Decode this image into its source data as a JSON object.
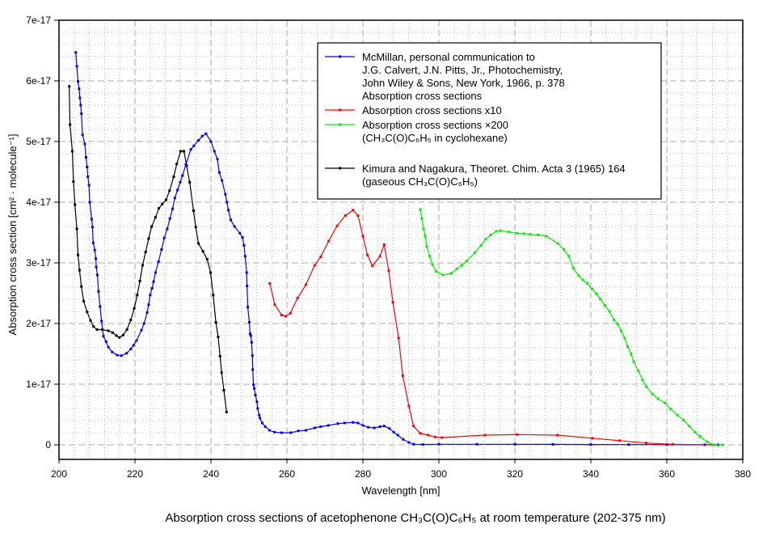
{
  "chart_data": {
    "type": "line",
    "title": "Absorption cross sections of acetophenone CH₃C(O)C₆H₅ at room temperature (202-375 nm)",
    "xlabel": "Wavelength [nm]",
    "ylabel": "Absorption cross section [cm² · molecule⁻¹]",
    "xlim": [
      200,
      380
    ],
    "ylim": [
      0,
      7e-17
    ],
    "x_ticks": [
      "200",
      "220",
      "240",
      "260",
      "280",
      "300",
      "320",
      "340",
      "360",
      "380"
    ],
    "y_ticks": [
      "0",
      "1e-17",
      "2e-17",
      "3e-17",
      "4e-17",
      "5e-17",
      "6e-17",
      "7e-17"
    ],
    "grid": true,
    "legend_position": "top-right",
    "legend": [
      {
        "series": 0,
        "lines": [
          "McMillan, personal communication to",
          "J.G. Calvert, J.N. Pitts, Jr., Photochemistry,",
          "John Wiley & Sons, New York, 1966, p. 378",
          "Absorption cross sections"
        ]
      },
      {
        "series": 1,
        "lines": [
          "Absorption cross sections x10"
        ]
      },
      {
        "series": 2,
        "lines": [
          "Absorption cross sections ×200",
          "(CH₃C(O)C₆H₅ in cyclohexane)"
        ]
      },
      {
        "series": 3,
        "lines": [
          "Kimura and Nagakura, Theoret. Chim. Acta 3 (1965) 164",
          "(gaseous CH₃C(O)C₆H₅)"
        ]
      }
    ],
    "series": [
      {
        "color": "#0000ff",
        "x": [
          204.4,
          204.7,
          205.0,
          205.3,
          205.5,
          205.7,
          205.9,
          206.2,
          206.8,
          207.1,
          207.4,
          207.6,
          207.9,
          208.1,
          208.6,
          208.8,
          209.0,
          209.4,
          209.7,
          209.8,
          210.1,
          210.4,
          210.8,
          211.2,
          211.7,
          212.4,
          213.0,
          214.0,
          215.3,
          216.4,
          217.8,
          218.9,
          219.6,
          220.4,
          221.7,
          222.4,
          223.2,
          223.6,
          224.0,
          224.5,
          224.9,
          225.4,
          226.2,
          227.0,
          227.7,
          228.5,
          229.2,
          229.9,
          230.5,
          231.2,
          231.9,
          232.5,
          233.4,
          234.7,
          235.5,
          236.7,
          237.7,
          238.7,
          240.0,
          240.9,
          241.7,
          242.2,
          242.9,
          243.8,
          244.2,
          244.6,
          245.2,
          246.2,
          247.6,
          248.3,
          248.7,
          249.0,
          249.4,
          249.5,
          249.7,
          250.1,
          250.3,
          250.5,
          250.7,
          250.9,
          251.0,
          251.2,
          251.4,
          251.7,
          252.1,
          252.3,
          252.7,
          252.9,
          253.5,
          254.3,
          255.4,
          256.7,
          258.6,
          261.0,
          263.0,
          265.0,
          267.3,
          268.9,
          270.9,
          273.4,
          275.2,
          277.4,
          278.7,
          280.0,
          281.4,
          283.0,
          284.5,
          285.6,
          287.0,
          288.1,
          289.2,
          290.6,
          292.1,
          293.4,
          295.8,
          300,
          310,
          320,
          330,
          340,
          350,
          360,
          370,
          373.5
        ],
        "y": [
          6.47e-17,
          6.24e-17,
          5.99e-17,
          5.87e-17,
          5.72e-17,
          5.6e-17,
          5.46e-17,
          5.11e-17,
          4.96e-17,
          4.74e-17,
          4.58e-17,
          4.42e-17,
          4.28e-17,
          4e-17,
          3.72e-17,
          3.59e-17,
          3.33e-17,
          3.21e-17,
          3.07e-17,
          2.93e-17,
          2.8e-17,
          2.53e-17,
          2.28e-17,
          2.04e-17,
          1.79e-17,
          1.7e-17,
          1.61e-17,
          1.53e-17,
          1.48e-17,
          1.47e-17,
          1.51e-17,
          1.58e-17,
          1.64e-17,
          1.72e-17,
          1.89e-17,
          2e-17,
          2.18e-17,
          2.31e-17,
          2.47e-17,
          2.58e-17,
          2.69e-17,
          2.84e-17,
          3.02e-17,
          3.22e-17,
          3.41e-17,
          3.56e-17,
          3.73e-17,
          3.89e-17,
          4.07e-17,
          4.2e-17,
          4.33e-17,
          4.44e-17,
          4.62e-17,
          4.87e-17,
          4.93e-17,
          5.02e-17,
          5.09e-17,
          5.13e-17,
          5e-17,
          4.84e-17,
          4.71e-17,
          4.49e-17,
          4.36e-17,
          4.13e-17,
          4e-17,
          3.87e-17,
          3.71e-17,
          3.6e-17,
          3.49e-17,
          3.42e-17,
          3.29e-17,
          3.11e-17,
          2.84e-17,
          2.62e-17,
          2.27e-17,
          2.02e-17,
          1.83e-17,
          1.8e-17,
          1.69e-17,
          1.47e-17,
          1.24e-17,
          9.9e-18,
          9.3e-18,
          8.2e-18,
          7.1e-18,
          6e-18,
          4.9e-18,
          4.4e-18,
          3.6e-18,
          3e-18,
          2.4e-18,
          2.1e-18,
          2e-18,
          2e-18,
          2.3e-18,
          2.4e-18,
          2.8e-18,
          3e-18,
          3.2e-18,
          3.5e-18,
          3.6e-18,
          3.7e-18,
          3.6e-18,
          3.2e-18,
          2.9e-18,
          2.8e-18,
          3e-18,
          3.1e-18,
          2.7e-18,
          2.1e-18,
          1.6e-18,
          9e-19,
          4e-19,
          1e-19,
          5e-20,
          1e-19,
          1e-19,
          1e-19,
          8e-20,
          5e-20,
          4e-20,
          3e-20,
          1e-20,
          0
        ]
      },
      {
        "color": "#ff0000",
        "x": [
          255.5,
          256.8,
          258.6,
          259.7,
          260.9,
          262.8,
          265.0,
          267.3,
          268.9,
          271.0,
          273.2,
          275.4,
          277.4,
          278.7,
          280.0,
          281.2,
          282.5,
          284.5,
          285.6,
          286.8,
          287.9,
          289.4,
          290.5,
          292.1,
          293.3,
          295.1,
          297.2,
          299.0,
          300.8,
          312.1,
          320.6,
          331.2,
          340.4,
          347.6,
          354.6,
          361.6,
          372.3
        ],
        "y": [
          2.66e-17,
          2.31e-17,
          2.14e-17,
          2.12e-17,
          2.17e-17,
          2.42e-17,
          2.64e-17,
          2.96e-17,
          3.1e-17,
          3.36e-17,
          3.61e-17,
          3.78e-17,
          3.87e-17,
          3.78e-17,
          3.44e-17,
          3.13e-17,
          2.95e-17,
          3.11e-17,
          3.3e-17,
          2.87e-17,
          2.35e-17,
          1.76e-17,
          1.14e-17,
          6.4e-18,
          3.1e-18,
          1.9e-18,
          1.6e-18,
          1.3e-18,
          1.2e-18,
          1.6e-18,
          1.7e-18,
          1.6e-18,
          1.1e-18,
          7e-19,
          3e-19,
          1e-19,
          0
        ]
      },
      {
        "color": "#00ee00",
        "x": [
          295.1,
          295.5,
          296.0,
          296.4,
          296.8,
          297.6,
          298.3,
          299.3,
          301.1,
          303.3,
          304.7,
          306.0,
          307.3,
          309.5,
          311.1,
          312.3,
          313.6,
          315.1,
          316.2,
          318.5,
          320.5,
          322.4,
          324.0,
          326.2,
          328.3,
          331.3,
          332.9,
          334.2,
          335.4,
          336.8,
          337.9,
          339.1,
          340.3,
          341.5,
          342.5,
          343.7,
          344.9,
          346.1,
          347.1,
          348.0,
          348.9,
          349.7,
          350.6,
          351.3,
          352.5,
          353.6,
          354.6,
          356.2,
          357.7,
          359.5,
          361.0,
          362.8,
          364.4,
          365.9,
          367.4,
          368.7,
          370.6,
          372.4,
          374.7
        ],
        "y": [
          3.88e-17,
          3.73e-17,
          3.56e-17,
          3.44e-17,
          3.27e-17,
          3.11e-17,
          2.97e-17,
          2.86e-17,
          2.8e-17,
          2.83e-17,
          2.9e-17,
          2.96e-17,
          3.03e-17,
          3.17e-17,
          3.29e-17,
          3.39e-17,
          3.46e-17,
          3.52e-17,
          3.53e-17,
          3.51e-17,
          3.49e-17,
          3.48e-17,
          3.47e-17,
          3.46e-17,
          3.44e-17,
          3.32e-17,
          3.22e-17,
          3.11e-17,
          2.91e-17,
          2.79e-17,
          2.72e-17,
          2.66e-17,
          2.57e-17,
          2.49e-17,
          2.4e-17,
          2.3e-17,
          2.2e-17,
          2.06e-17,
          1.99e-17,
          1.88e-17,
          1.76e-17,
          1.62e-17,
          1.5e-17,
          1.37e-17,
          1.22e-17,
          1.07e-17,
          9.6e-18,
          8.4e-18,
          7.6e-18,
          6.9e-18,
          5.9e-18,
          4.9e-18,
          4.1e-18,
          3.1e-18,
          2.1e-18,
          1.4e-18,
          5e-19,
          0,
          0
        ]
      },
      {
        "color": "#000000",
        "x": [
          202.7,
          202.9,
          203.5,
          203.8,
          204.2,
          204.7,
          205.0,
          205.4,
          205.9,
          206.5,
          207.4,
          208.3,
          209.1,
          210.0,
          211.4,
          213.0,
          214.1,
          215.1,
          215.9,
          216.9,
          217.9,
          218.9,
          219.8,
          220.6,
          221.3,
          222.0,
          222.8,
          223.6,
          224.4,
          225.4,
          226.3,
          227.2,
          228.2,
          229.1,
          230.2,
          231.0,
          232.0,
          232.9,
          233.6,
          234.4,
          235.4,
          236.0,
          236.7,
          237.9,
          239.0,
          239.9,
          240.6,
          241.3,
          241.9,
          242.4,
          242.8,
          243.4,
          244.1
        ],
        "y": [
          5.91e-17,
          5.28e-17,
          4.84e-17,
          4.34e-17,
          3.96e-17,
          3.56e-17,
          3.13e-17,
          2.88e-17,
          2.61e-17,
          2.37e-17,
          2.19e-17,
          2.05e-17,
          1.95e-17,
          1.9e-17,
          1.9e-17,
          1.88e-17,
          1.85e-17,
          1.8e-17,
          1.77e-17,
          1.81e-17,
          1.9e-17,
          2.06e-17,
          2.25e-17,
          2.47e-17,
          2.7e-17,
          2.96e-17,
          3.18e-17,
          3.4e-17,
          3.6e-17,
          3.75e-17,
          3.9e-17,
          3.97e-17,
          4.04e-17,
          4.19e-17,
          4.42e-17,
          4.63e-17,
          4.84e-17,
          4.84e-17,
          4.6e-17,
          4.33e-17,
          3.86e-17,
          3.59e-17,
          3.32e-17,
          3.19e-17,
          3.06e-17,
          2.84e-17,
          2.47e-17,
          2.02e-17,
          1.78e-17,
          1.46e-17,
          1.19e-17,
          9e-18,
          5.4e-18
        ]
      }
    ]
  }
}
